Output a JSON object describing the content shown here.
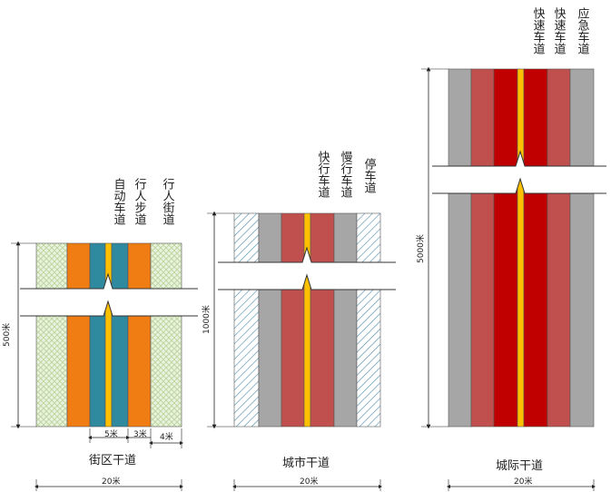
{
  "colors": {
    "sidewalk_green_pattern": "#e6f0d8",
    "orange_lane": "#f07c14",
    "teal_lane": "#2f8a9f",
    "gray_lane": "#a6a6a6",
    "red_lane": "#c0504d",
    "dark_red_lane": "#c00000",
    "median_yellow": "#ffc000",
    "hatch_blue": "#4a8aa8"
  },
  "section1": {
    "caption": "街区干道",
    "labels": [
      "自动车道",
      "行人步道",
      "行人街道"
    ],
    "height_dim": "500米",
    "width_dim": "20米",
    "sub_dims": [
      "5米",
      "3米",
      "4米"
    ]
  },
  "section2": {
    "caption": "城市干道",
    "labels": [
      "快行车道",
      "慢行车道",
      "停车道"
    ],
    "height_dim": "1000米",
    "width_dim": "20米"
  },
  "section3": {
    "caption": "城际干道",
    "labels": [
      "快速车道",
      "快速车道",
      "应急车道"
    ],
    "height_dim": "5000米",
    "width_dim": "20米"
  }
}
